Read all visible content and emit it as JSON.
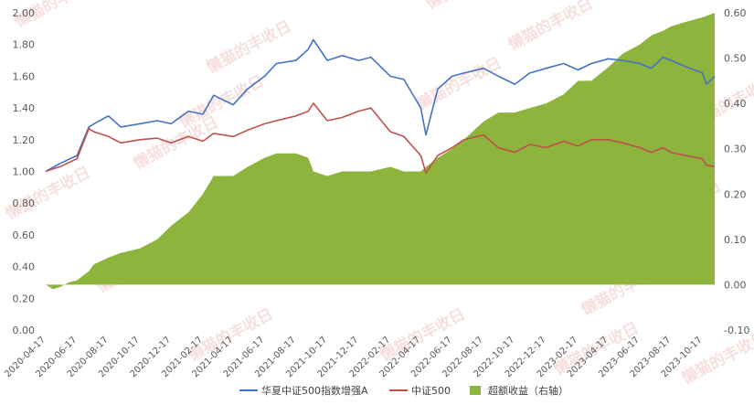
{
  "chart_data": {
    "type": "line",
    "title": "",
    "watermark": "懒猫的丰收日",
    "x_ticks": [
      "2020-04-17",
      "2020-06-17",
      "2020-08-17",
      "2020-10-17",
      "2020-12-17",
      "2021-02-17",
      "2021-04-17",
      "2021-06-17",
      "2021-08-17",
      "2021-10-17",
      "2021-12-17",
      "2022-02-17",
      "2022-04-17",
      "2022-06-17",
      "2022-08-17",
      "2022-10-17",
      "2022-12-17",
      "2023-02-17",
      "2023-04-17",
      "2023-06-17",
      "2023-08-17",
      "2023-10-17"
    ],
    "y_left": {
      "min": 0,
      "max": 2,
      "ticks": [
        "0.00",
        "0.20",
        "0.40",
        "0.60",
        "0.80",
        "1.00",
        "1.20",
        "1.40",
        "1.60",
        "1.80",
        "2.00"
      ]
    },
    "y_right": {
      "min": -0.1,
      "max": 0.6,
      "ticks": [
        "-0.10",
        "0.00",
        "0.10",
        "0.20",
        "0.30",
        "0.40",
        "0.50",
        "0.60"
      ]
    },
    "series": [
      {
        "name": "华夏中证500指数增强A",
        "axis": "left",
        "type": "line",
        "color": "#4472C4",
        "x": [
          "2020-04-17",
          "2020-05-15",
          "2020-06-17",
          "2020-07-10",
          "2020-07-20",
          "2020-08-17",
          "2020-09-10",
          "2020-10-17",
          "2020-11-20",
          "2020-12-17",
          "2021-01-20",
          "2021-02-17",
          "2021-03-10",
          "2021-04-17",
          "2021-05-15",
          "2021-06-17",
          "2021-07-10",
          "2021-08-17",
          "2021-09-10",
          "2021-09-20",
          "2021-10-17",
          "2021-11-15",
          "2021-12-17",
          "2022-01-10",
          "2022-02-17",
          "2022-03-15",
          "2022-04-17",
          "2022-04-27",
          "2022-05-20",
          "2022-06-17",
          "2022-07-10",
          "2022-08-17",
          "2022-09-15",
          "2022-10-17",
          "2022-11-15",
          "2022-12-17",
          "2023-01-20",
          "2023-02-17",
          "2023-03-15",
          "2023-04-17",
          "2023-05-15",
          "2023-06-17",
          "2023-07-10",
          "2023-08-01",
          "2023-08-17",
          "2023-09-15",
          "2023-10-17",
          "2023-10-25",
          "2023-11-10"
        ],
        "values": [
          1.0,
          1.05,
          1.1,
          1.28,
          1.3,
          1.35,
          1.28,
          1.3,
          1.32,
          1.3,
          1.38,
          1.36,
          1.48,
          1.42,
          1.52,
          1.6,
          1.68,
          1.7,
          1.77,
          1.83,
          1.7,
          1.73,
          1.7,
          1.72,
          1.6,
          1.58,
          1.4,
          1.23,
          1.52,
          1.6,
          1.62,
          1.65,
          1.6,
          1.55,
          1.62,
          1.65,
          1.68,
          1.64,
          1.68,
          1.71,
          1.7,
          1.68,
          1.65,
          1.72,
          1.7,
          1.66,
          1.62,
          1.55,
          1.6
        ]
      },
      {
        "name": "中证500",
        "axis": "left",
        "type": "line",
        "color": "#C0504D",
        "x": [
          "2020-04-17",
          "2020-05-15",
          "2020-06-17",
          "2020-07-10",
          "2020-07-20",
          "2020-08-17",
          "2020-09-10",
          "2020-10-17",
          "2020-11-20",
          "2020-12-17",
          "2021-01-20",
          "2021-02-17",
          "2021-03-10",
          "2021-04-17",
          "2021-05-15",
          "2021-06-17",
          "2021-07-10",
          "2021-08-17",
          "2021-09-10",
          "2021-09-20",
          "2021-10-17",
          "2021-11-15",
          "2021-12-17",
          "2022-01-10",
          "2022-02-17",
          "2022-03-15",
          "2022-04-17",
          "2022-04-27",
          "2022-05-20",
          "2022-06-17",
          "2022-07-10",
          "2022-08-17",
          "2022-09-15",
          "2022-10-17",
          "2022-11-15",
          "2022-12-17",
          "2023-01-20",
          "2023-02-17",
          "2023-03-15",
          "2023-04-17",
          "2023-05-15",
          "2023-06-17",
          "2023-07-10",
          "2023-08-01",
          "2023-08-17",
          "2023-09-15",
          "2023-10-17",
          "2023-10-25",
          "2023-11-10"
        ],
        "values": [
          1.0,
          1.03,
          1.08,
          1.27,
          1.25,
          1.22,
          1.18,
          1.2,
          1.21,
          1.18,
          1.22,
          1.19,
          1.24,
          1.22,
          1.26,
          1.3,
          1.32,
          1.35,
          1.38,
          1.43,
          1.32,
          1.34,
          1.38,
          1.4,
          1.25,
          1.22,
          1.1,
          0.99,
          1.1,
          1.15,
          1.2,
          1.23,
          1.15,
          1.12,
          1.17,
          1.15,
          1.19,
          1.16,
          1.2,
          1.2,
          1.18,
          1.15,
          1.12,
          1.15,
          1.12,
          1.1,
          1.08,
          1.04,
          1.03
        ]
      },
      {
        "name": "超额收益（右轴）",
        "axis": "right",
        "type": "area",
        "color": "#8DB43D",
        "x": [
          "2020-04-17",
          "2020-05-01",
          "2020-05-15",
          "2020-06-01",
          "2020-06-17",
          "2020-07-10",
          "2020-07-20",
          "2020-08-17",
          "2020-09-10",
          "2020-10-17",
          "2020-11-20",
          "2020-12-17",
          "2021-01-20",
          "2021-02-17",
          "2021-03-10",
          "2021-04-17",
          "2021-05-15",
          "2021-06-17",
          "2021-07-10",
          "2021-08-17",
          "2021-09-10",
          "2021-09-20",
          "2021-10-17",
          "2021-11-15",
          "2021-12-17",
          "2022-01-10",
          "2022-02-17",
          "2022-03-15",
          "2022-04-17",
          "2022-04-27",
          "2022-05-20",
          "2022-06-17",
          "2022-07-10",
          "2022-08-17",
          "2022-09-15",
          "2022-10-17",
          "2022-11-15",
          "2022-12-17",
          "2023-01-20",
          "2023-02-17",
          "2023-03-15",
          "2023-04-17",
          "2023-05-15",
          "2023-06-17",
          "2023-07-10",
          "2023-08-01",
          "2023-08-17",
          "2023-09-15",
          "2023-10-17",
          "2023-11-10"
        ],
        "values": [
          0.0,
          -0.01,
          -0.005,
          0.005,
          0.01,
          0.03,
          0.045,
          0.06,
          0.07,
          0.08,
          0.1,
          0.13,
          0.16,
          0.2,
          0.24,
          0.24,
          0.26,
          0.28,
          0.29,
          0.29,
          0.28,
          0.25,
          0.24,
          0.25,
          0.25,
          0.25,
          0.26,
          0.25,
          0.25,
          0.26,
          0.28,
          0.3,
          0.32,
          0.36,
          0.38,
          0.38,
          0.39,
          0.4,
          0.42,
          0.45,
          0.45,
          0.48,
          0.51,
          0.53,
          0.55,
          0.56,
          0.57,
          0.58,
          0.59,
          0.6
        ]
      }
    ],
    "legend_position": "bottom",
    "grid": false
  }
}
